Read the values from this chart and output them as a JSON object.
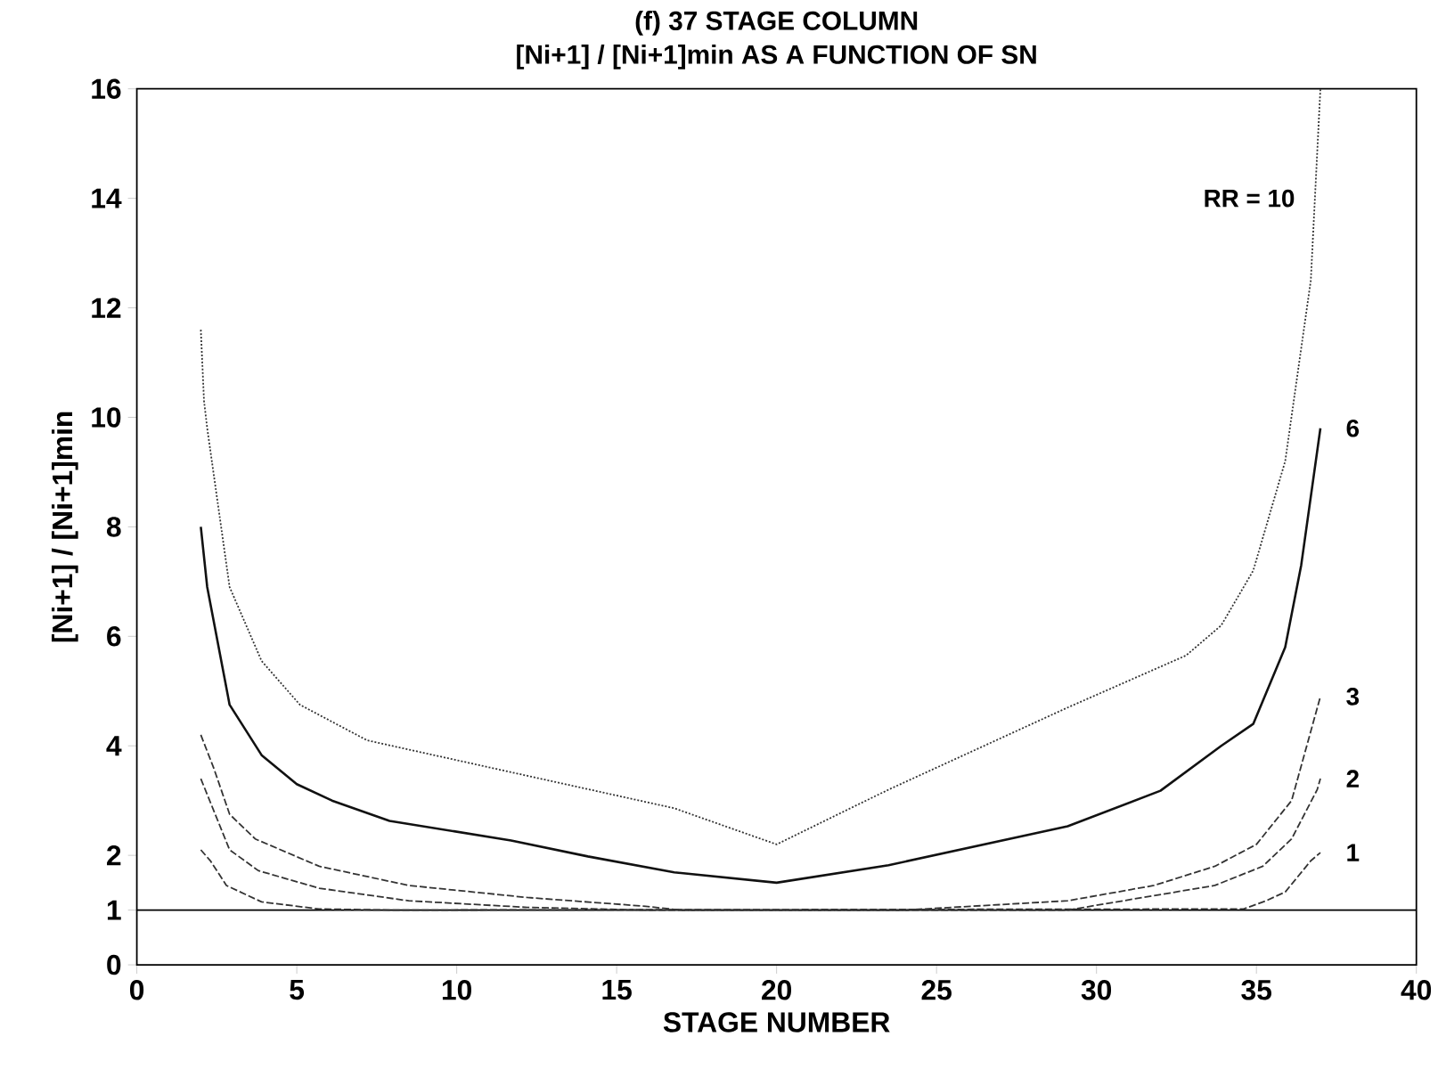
{
  "chart_data": {
    "type": "line",
    "title": "(f) 37 STAGE COLUMN",
    "subtitle": "[Ni+1] / [Ni+1]min AS A FUNCTION OF SN",
    "xlabel": "STAGE NUMBER",
    "ylabel": "[Ni+1] / [Ni+1]min",
    "xlim": [
      0,
      40
    ],
    "ylim": [
      0,
      16
    ],
    "xticks": [
      0,
      5,
      10,
      15,
      20,
      25,
      30,
      35,
      40
    ],
    "yticks": [
      0,
      1,
      2,
      4,
      6,
      8,
      10,
      12,
      14,
      16
    ],
    "grid": false,
    "ref_lines": [
      {
        "axis": "y",
        "value": 1
      }
    ],
    "series": [
      {
        "name": "RR = 10",
        "color": "#333333",
        "line_style": "dotted",
        "x": [
          2,
          2.1,
          2.2,
          2.9,
          3.9,
          5.1,
          7.2,
          11.3,
          16.8,
          20,
          23.5,
          29.1,
          32.8,
          33.9,
          34.9,
          35.9,
          36.7,
          37
        ],
        "values": [
          11.6,
          10.3,
          9.8,
          6.9,
          5.55,
          4.75,
          4.1,
          3.57,
          2.86,
          2.2,
          3.2,
          4.7,
          5.65,
          6.2,
          7.2,
          9.2,
          12.5,
          16
        ]
      },
      {
        "name": "6",
        "color": "#111111",
        "line_style": "solid",
        "x": [
          2,
          2.2,
          2.9,
          3.9,
          5,
          6.1,
          7.9,
          11.7,
          14.1,
          16.8,
          20,
          23.5,
          29.1,
          32,
          33.9,
          34.9,
          35.9,
          36.4,
          37
        ],
        "values": [
          8.0,
          6.9,
          4.75,
          3.83,
          3.3,
          3.0,
          2.63,
          2.27,
          1.98,
          1.69,
          1.5,
          1.82,
          2.53,
          3.18,
          4.0,
          4.4,
          5.8,
          7.3,
          9.8
        ]
      },
      {
        "name": "3",
        "color": "#333333",
        "line_style": "dashed",
        "x": [
          2,
          2.4,
          2.9,
          3.7,
          5.7,
          8.5,
          12.2,
          15.9,
          17,
          24,
          29.1,
          31.8,
          33.7,
          35,
          36.1,
          37
        ],
        "values": [
          4.2,
          3.6,
          2.75,
          2.3,
          1.8,
          1.45,
          1.23,
          1.07,
          1.0,
          1.0,
          1.17,
          1.45,
          1.8,
          2.2,
          3.0,
          4.9
        ]
      },
      {
        "name": "2",
        "color": "#333333",
        "line_style": "dashed",
        "x": [
          2,
          2.9,
          3.8,
          5.7,
          8.5,
          12.2,
          16,
          29.1,
          33.7,
          35.2,
          36.1,
          36.9,
          37
        ],
        "values": [
          3.4,
          2.1,
          1.72,
          1.4,
          1.17,
          1.05,
          1.0,
          1.0,
          1.45,
          1.8,
          2.3,
          3.2,
          3.4
        ]
      },
      {
        "name": "1",
        "color": "#333333",
        "line_style": "dashed",
        "x": [
          2,
          2.3,
          2.8,
          3.9,
          5.7,
          8,
          34.6,
          35.3,
          35.9,
          36.7,
          37
        ],
        "values": [
          2.1,
          1.9,
          1.45,
          1.15,
          1.02,
          1.0,
          1.02,
          1.17,
          1.33,
          1.9,
          2.05
        ]
      }
    ]
  }
}
